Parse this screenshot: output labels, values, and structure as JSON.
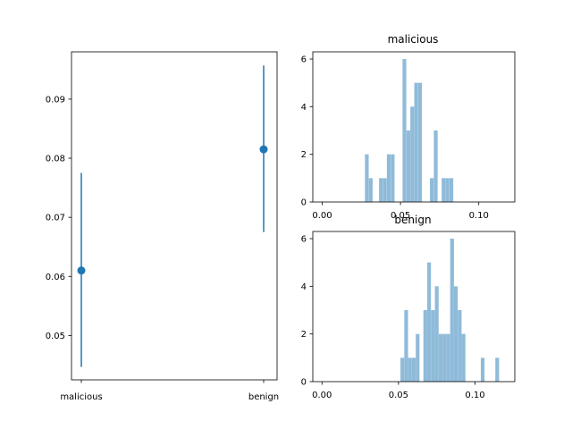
{
  "chart_data": [
    {
      "type": "errorbar",
      "categories": [
        "malicious",
        "benign"
      ],
      "values": [
        0.061,
        0.0815
      ],
      "lower": [
        0.0447,
        0.0675
      ],
      "upper": [
        0.0775,
        0.0957
      ],
      "ylim": [
        0.0425,
        0.098
      ],
      "yticks": [
        0.05,
        0.06,
        0.07,
        0.08,
        0.09
      ],
      "ytick_labels": [
        "0.05",
        "0.06",
        "0.07",
        "0.08",
        "0.09"
      ],
      "color": "#1f77b4",
      "grid": false
    },
    {
      "type": "bar",
      "title": "malicious",
      "x": [
        0.0285,
        0.031,
        0.0375,
        0.04,
        0.0425,
        0.045,
        0.0525,
        0.055,
        0.0575,
        0.06,
        0.0625,
        0.07,
        0.0725,
        0.0775,
        0.08,
        0.0825
      ],
      "values": [
        2,
        1,
        1,
        1,
        2,
        2,
        6,
        3,
        4,
        5,
        5,
        1,
        3,
        1,
        1,
        1
      ],
      "xlim": [
        -0.006,
        0.123
      ],
      "ylim": [
        0,
        6.3
      ],
      "xticks": [
        0.0,
        0.05,
        0.1
      ],
      "xtick_labels": [
        "0.00",
        "0.05",
        "0.10"
      ],
      "yticks": [
        0,
        2,
        4,
        6
      ],
      "ytick_labels": [
        "0",
        "2",
        "4",
        "6"
      ],
      "color": "#8fbbd9",
      "grid": false
    },
    {
      "type": "bar",
      "title": "benign",
      "x": [
        0.0525,
        0.055,
        0.0575,
        0.06,
        0.0625,
        0.0675,
        0.07,
        0.0725,
        0.075,
        0.0775,
        0.08,
        0.0825,
        0.085,
        0.0875,
        0.09,
        0.0925,
        0.105,
        0.1145
      ],
      "values": [
        1,
        3,
        1,
        1,
        2,
        3,
        5,
        3,
        4,
        2,
        2,
        2,
        6,
        4,
        3,
        2,
        1,
        1
      ],
      "xlim": [
        -0.006,
        0.126
      ],
      "ylim": [
        0,
        6.3
      ],
      "xticks": [
        0.0,
        0.05,
        0.1
      ],
      "xtick_labels": [
        "0.00",
        "0.05",
        "0.10"
      ],
      "yticks": [
        0,
        2,
        4,
        6
      ],
      "ytick_labels": [
        "0",
        "2",
        "4",
        "6"
      ],
      "color": "#8fbbd9",
      "grid": false
    }
  ]
}
